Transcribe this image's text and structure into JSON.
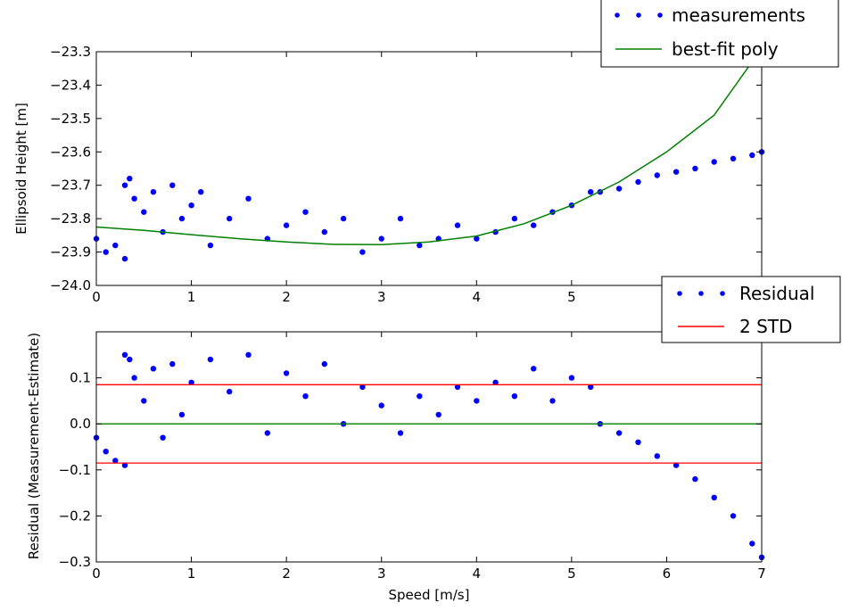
{
  "chart_data": [
    {
      "type": "scatter",
      "title": "",
      "xlabel": "",
      "ylabel": "Ellipsoid Height [m]",
      "xlim": [
        0,
        7
      ],
      "ylim": [
        -24.0,
        -23.3
      ],
      "x_ticks": [
        "0",
        "1",
        "2",
        "3",
        "4",
        "5",
        "6"
      ],
      "y_ticks": [
        "−23.3",
        "−23.4",
        "−23.5",
        "−23.6",
        "−23.7",
        "−23.8",
        "−23.9",
        "−24.0"
      ],
      "legend_position": "top-right",
      "grid": false,
      "series": [
        {
          "name": "measurements",
          "kind": "scatter",
          "color": "#0000ff",
          "x": [
            0.0,
            0.1,
            0.2,
            0.3,
            0.3,
            0.35,
            0.4,
            0.5,
            0.6,
            0.7,
            0.8,
            0.9,
            1.0,
            1.1,
            1.2,
            1.4,
            1.6,
            1.8,
            2.0,
            2.2,
            2.4,
            2.6,
            2.8,
            3.0,
            3.2,
            3.4,
            3.6,
            3.8,
            4.0,
            4.2,
            4.4,
            4.6,
            4.8,
            5.0,
            5.2,
            5.3,
            5.5,
            5.7,
            5.9,
            6.1,
            6.3,
            6.5,
            6.7,
            6.9,
            7.0
          ],
          "y": [
            -23.86,
            -23.9,
            -23.88,
            -23.7,
            -23.92,
            -23.68,
            -23.74,
            -23.78,
            -23.72,
            -23.84,
            -23.7,
            -23.8,
            -23.76,
            -23.72,
            -23.88,
            -23.8,
            -23.74,
            -23.86,
            -23.82,
            -23.78,
            -23.84,
            -23.8,
            -23.9,
            -23.86,
            -23.8,
            -23.88,
            -23.86,
            -23.82,
            -23.86,
            -23.84,
            -23.8,
            -23.82,
            -23.78,
            -23.76,
            -23.72,
            -23.72,
            -23.71,
            -23.69,
            -23.67,
            -23.66,
            -23.65,
            -23.63,
            -23.62,
            -23.61,
            -23.6
          ]
        },
        {
          "name": "best-fit poly",
          "kind": "line",
          "color": "#008000",
          "x": [
            0.0,
            0.5,
            1.0,
            1.5,
            2.0,
            2.5,
            3.0,
            3.5,
            4.0,
            4.5,
            5.0,
            5.5,
            6.0,
            6.5,
            6.9
          ],
          "y": [
            -23.825,
            -23.835,
            -23.848,
            -23.86,
            -23.87,
            -23.877,
            -23.878,
            -23.87,
            -23.852,
            -23.815,
            -23.76,
            -23.69,
            -23.6,
            -23.49,
            -23.33
          ]
        }
      ]
    },
    {
      "type": "scatter",
      "title": "",
      "xlabel": "Speed [m/s]",
      "ylabel": "Residual (Measurement-Estimate)",
      "xlim": [
        0,
        7
      ],
      "ylim": [
        -0.3,
        0.2
      ],
      "x_ticks": [
        "0",
        "1",
        "2",
        "3",
        "4",
        "5",
        "6",
        "7"
      ],
      "y_ticks": [
        "0.1",
        "0.0",
        "−0.1",
        "−0.2",
        "−0.3"
      ],
      "legend_position": "top-right",
      "grid": false,
      "series": [
        {
          "name": "Residual",
          "kind": "scatter",
          "color": "#0000ff",
          "x": [
            0.0,
            0.1,
            0.2,
            0.3,
            0.3,
            0.35,
            0.4,
            0.5,
            0.6,
            0.7,
            0.8,
            0.9,
            1.0,
            1.2,
            1.4,
            1.6,
            1.8,
            2.0,
            2.2,
            2.4,
            2.6,
            2.8,
            3.0,
            3.2,
            3.4,
            3.6,
            3.8,
            4.0,
            4.2,
            4.4,
            4.6,
            4.8,
            5.0,
            5.2,
            5.3,
            5.5,
            5.7,
            5.9,
            6.1,
            6.3,
            6.5,
            6.7,
            6.9,
            7.0
          ],
          "y": [
            -0.03,
            -0.06,
            -0.08,
            0.15,
            -0.09,
            0.14,
            0.1,
            0.05,
            0.12,
            -0.03,
            0.13,
            0.02,
            0.09,
            0.14,
            0.07,
            0.15,
            -0.02,
            0.11,
            0.06,
            0.13,
            0.0,
            0.08,
            0.04,
            -0.02,
            0.06,
            0.02,
            0.08,
            0.05,
            0.09,
            0.06,
            0.12,
            0.05,
            0.1,
            0.08,
            0.0,
            -0.02,
            -0.04,
            -0.07,
            -0.09,
            -0.12,
            -0.16,
            -0.2,
            -0.26,
            -0.29
          ]
        },
        {
          "name": "2 STD",
          "kind": "hline",
          "color": "#ff0000",
          "y": [
            0.085,
            -0.085
          ]
        },
        {
          "name": "",
          "kind": "hline",
          "color": "#008000",
          "y": [
            0.0
          ]
        }
      ]
    }
  ]
}
